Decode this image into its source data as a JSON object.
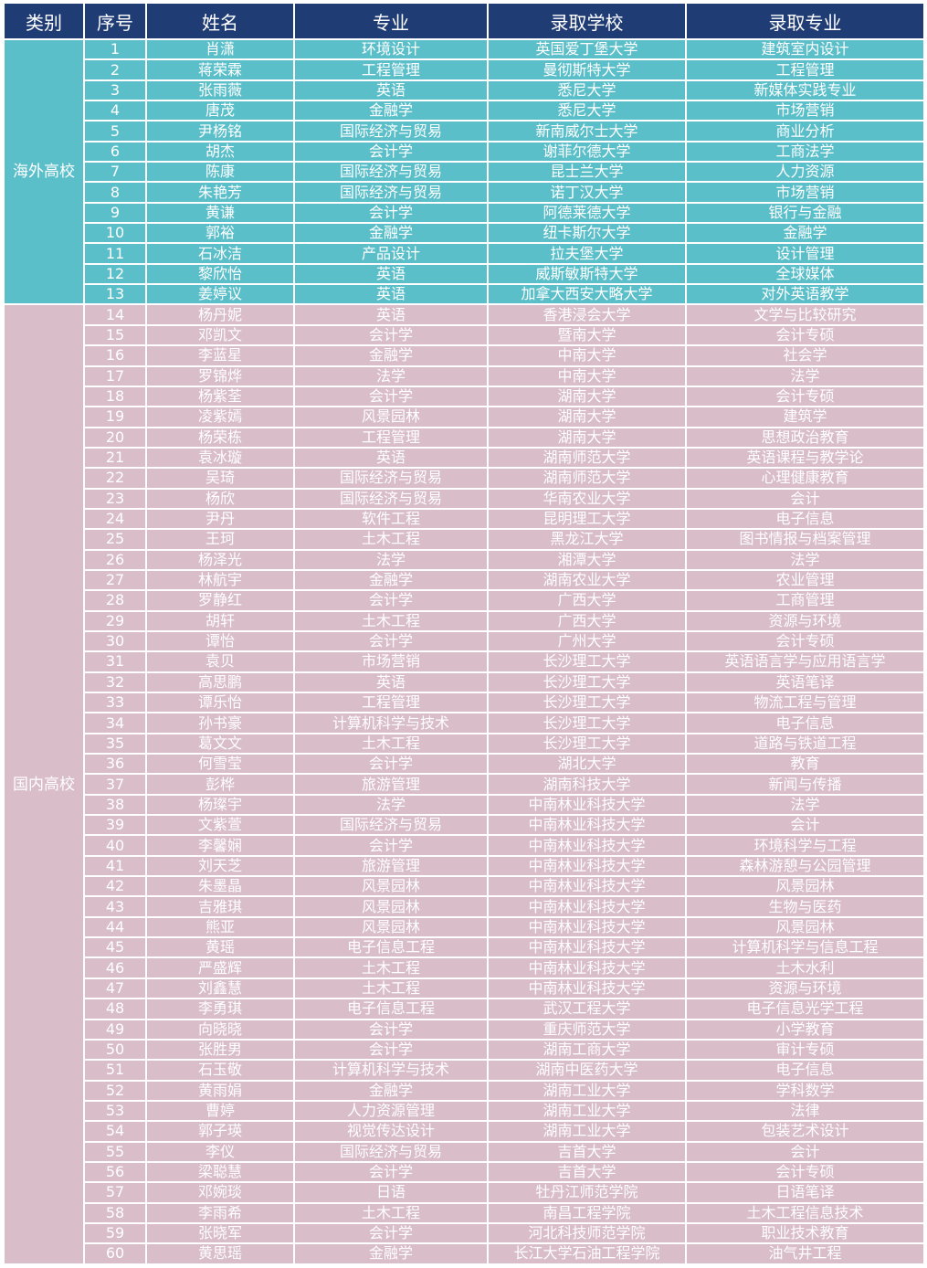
{
  "header": [
    "类别",
    "序号",
    "姓名",
    "专业",
    "录取学校",
    "录取专业"
  ],
  "colors": {
    "header": "#1f3c74",
    "overseas": "#5bbfca",
    "domestic": "#d9bdc9"
  },
  "groups": [
    {
      "category": "海外高校",
      "type": "overseas",
      "rows": [
        [
          "1",
          "肖潇",
          "环境设计",
          "英国爱丁堡大学",
          "建筑室内设计"
        ],
        [
          "2",
          "蒋荣霖",
          "工程管理",
          "曼彻斯特大学",
          "工程管理"
        ],
        [
          "3",
          "张雨薇",
          "英语",
          "悉尼大学",
          "新媒体实践专业"
        ],
        [
          "4",
          "唐茂",
          "金融学",
          "悉尼大学",
          "市场营销"
        ],
        [
          "5",
          "尹杨铭",
          "国际经济与贸易",
          "新南威尔士大学",
          "商业分析"
        ],
        [
          "6",
          "胡杰",
          "会计学",
          "谢菲尔德大学",
          "工商法学"
        ],
        [
          "7",
          "陈康",
          "国际经济与贸易",
          "昆士兰大学",
          "人力资源"
        ],
        [
          "8",
          "朱艳芳",
          "国际经济与贸易",
          "诺丁汉大学",
          "市场营销"
        ],
        [
          "9",
          "黄谦",
          "会计学",
          "阿德莱德大学",
          "银行与金融"
        ],
        [
          "10",
          "郭裕",
          "金融学",
          "纽卡斯尔大学",
          "金融学"
        ],
        [
          "11",
          "石冰洁",
          "产品设计",
          "拉夫堡大学",
          "设计管理"
        ],
        [
          "12",
          "黎欣怡",
          "英语",
          "威斯敏斯特大学",
          "全球媒体"
        ],
        [
          "13",
          "姜婷议",
          "英语",
          "加拿大西安大略大学",
          "对外英语教学"
        ]
      ]
    },
    {
      "category": "国内高校",
      "type": "domestic",
      "rows": [
        [
          "14",
          "杨丹妮",
          "英语",
          "香港浸会大学",
          "文学与比较研究"
        ],
        [
          "15",
          "邓凯文",
          "会计学",
          "暨南大学",
          "会计专硕"
        ],
        [
          "16",
          "李蓝星",
          "金融学",
          "中南大学",
          "社会学"
        ],
        [
          "17",
          "罗锦烨",
          "法学",
          "中南大学",
          "法学"
        ],
        [
          "18",
          "杨紫荃",
          "会计学",
          "湖南大学",
          "会计专硕"
        ],
        [
          "19",
          "凌紫嫣",
          "风景园林",
          "湖南大学",
          "建筑学"
        ],
        [
          "20",
          "杨荣栋",
          "工程管理",
          "湖南大学",
          "思想政治教育"
        ],
        [
          "21",
          "袁冰璇",
          "英语",
          "湖南师范大学",
          "英语课程与教学论"
        ],
        [
          "22",
          "吴琦",
          "国际经济与贸易",
          "湖南师范大学",
          "心理健康教育"
        ],
        [
          "23",
          "杨欣",
          "国际经济与贸易",
          "华南农业大学",
          "会计"
        ],
        [
          "24",
          "尹丹",
          "软件工程",
          "昆明理工大学",
          "电子信息"
        ],
        [
          "25",
          "王珂",
          "土木工程",
          "黑龙江大学",
          "图书情报与档案管理"
        ],
        [
          "26",
          "杨泽光",
          "法学",
          "湘潭大学",
          "法学"
        ],
        [
          "27",
          "林航宇",
          "金融学",
          "湖南农业大学",
          "农业管理"
        ],
        [
          "28",
          "罗静红",
          "会计学",
          "广西大学",
          "工商管理"
        ],
        [
          "29",
          "胡轩",
          "土木工程",
          "广西大学",
          "资源与环境"
        ],
        [
          "30",
          "谭怡",
          "会计学",
          "广州大学",
          "会计专硕"
        ],
        [
          "31",
          "袁贝",
          "市场营销",
          "长沙理工大学",
          "英语语言学与应用语言学"
        ],
        [
          "32",
          "高思鹏",
          "英语",
          "长沙理工大学",
          "英语笔译"
        ],
        [
          "33",
          "谭乐怡",
          "工程管理",
          "长沙理工大学",
          "物流工程与管理"
        ],
        [
          "34",
          "孙书豪",
          "计算机科学与技术",
          "长沙理工大学",
          "电子信息"
        ],
        [
          "35",
          "葛文文",
          "土木工程",
          "长沙理工大学",
          "道路与铁道工程"
        ],
        [
          "36",
          "何雪莹",
          "会计学",
          "湖北大学",
          "教育"
        ],
        [
          "37",
          "彭桦",
          "旅游管理",
          "湖南科技大学",
          "新闻与传播"
        ],
        [
          "38",
          "杨璨宇",
          "法学",
          "中南林业科技大学",
          "法学"
        ],
        [
          "39",
          "文紫萱",
          "国际经济与贸易",
          "中南林业科技大学",
          "会计"
        ],
        [
          "40",
          "李馨娴",
          "会计学",
          "中南林业科技大学",
          "环境科学与工程"
        ],
        [
          "41",
          "刘天芝",
          "旅游管理",
          "中南林业科技大学",
          "森林游憩与公园管理"
        ],
        [
          "42",
          "朱墨晶",
          "风景园林",
          "中南林业科技大学",
          "风景园林"
        ],
        [
          "43",
          "吉雅琪",
          "风景园林",
          "中南林业科技大学",
          "生物与医药"
        ],
        [
          "44",
          "熊亚",
          "风景园林",
          "中南林业科技大学",
          "风景园林"
        ],
        [
          "45",
          "黄瑶",
          "电子信息工程",
          "中南林业科技大学",
          "计算机科学与信息工程"
        ],
        [
          "46",
          "严盛辉",
          "土木工程",
          "中南林业科技大学",
          "土木水利"
        ],
        [
          "47",
          "刘鑫慧",
          "土木工程",
          "中南林业科技大学",
          "资源与环境"
        ],
        [
          "48",
          "李勇琪",
          "电子信息工程",
          "武汉工程大学",
          "电子信息光学工程"
        ],
        [
          "49",
          "向晓晓",
          "会计学",
          "重庆师范大学",
          "小学教育"
        ],
        [
          "50",
          "张胜男",
          "会计学",
          "湖南工商大学",
          "审计专硕"
        ],
        [
          "51",
          "石玉敬",
          "计算机科学与技术",
          "湖南中医药大学",
          "电子信息"
        ],
        [
          "52",
          "黄雨娟",
          "金融学",
          "湖南工业大学",
          "学科数学"
        ],
        [
          "53",
          "曹婷",
          "人力资源管理",
          "湖南工业大学",
          "法律"
        ],
        [
          "54",
          "郭子瑛",
          "视觉传达设计",
          "湖南工业大学",
          "包装艺术设计"
        ],
        [
          "55",
          "李仪",
          "国际经济与贸易",
          "吉首大学",
          "会计"
        ],
        [
          "56",
          "梁聪慧",
          "会计学",
          "吉首大学",
          "会计专硕"
        ],
        [
          "57",
          "邓婉琰",
          "日语",
          "牡丹江师范学院",
          "日语笔译"
        ],
        [
          "58",
          "李雨希",
          "土木工程",
          "南昌工程学院",
          "土木工程信息技术"
        ],
        [
          "59",
          "张晓军",
          "会计学",
          "河北科技师范学院",
          "职业技术教育"
        ],
        [
          "60",
          "黄思瑶",
          "金融学",
          "长江大学石油工程学院",
          "油气井工程"
        ]
      ]
    }
  ]
}
